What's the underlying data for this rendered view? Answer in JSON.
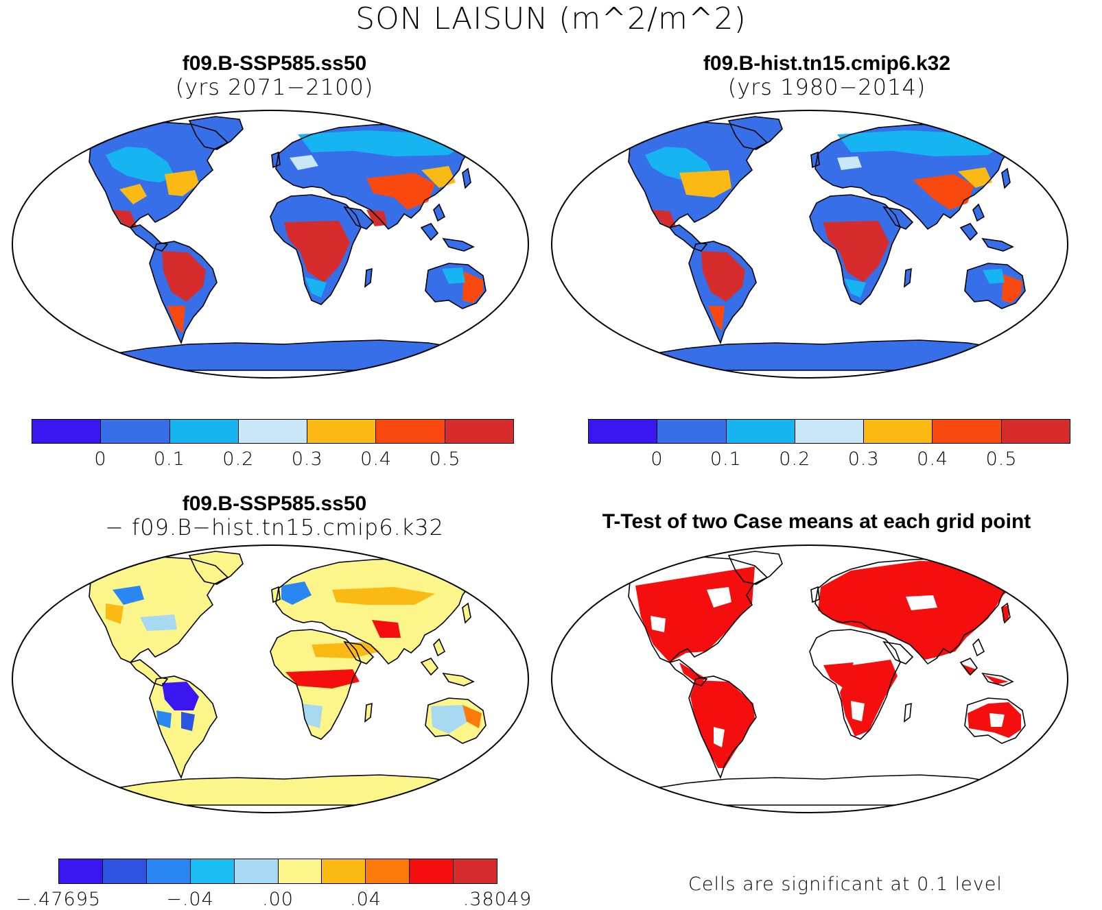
{
  "figure": {
    "title": "SON LAISUN (m^2/m^2)"
  },
  "panels": {
    "future": {
      "title_line1": "f09.B-SSP585.ss50",
      "title_line2": "(yrs 2071−2100)"
    },
    "historical": {
      "title_line1": "f09.B-hist.tn15.cmip6.k32",
      "title_line2": "(yrs 1980−2014)"
    },
    "difference": {
      "title_line1": "f09.B-SSP585.ss50",
      "title_line2": "− f09.B−hist.tn15.cmip6.k32"
    },
    "ttest": {
      "title": "T-Test of two Case means at each grid point",
      "footnote": "Cells are significant at 0.1 level"
    }
  },
  "colorbars": {
    "absolute": {
      "colors": [
        "#3a16f0",
        "#376fe8",
        "#16b4f0",
        "#c9e7f7",
        "#fbb913",
        "#f9490f",
        "#d62c2c"
      ],
      "ticks": [
        "0",
        "0.1",
        "0.2",
        "0.3",
        "0.4",
        "0.5"
      ]
    },
    "difference": {
      "colors": [
        "#3a16f0",
        "#2d54e0",
        "#2a86f2",
        "#1bbdf2",
        "#a7d9f3",
        "#fcf68a",
        "#fbb913",
        "#fb7a0a",
        "#f50e0e",
        "#d62c2c"
      ],
      "tick_labels": [
        ".47695",
        "−.04",
        ".00",
        ".04",
        ".38049"
      ],
      "first_tick_prefix": "−"
    }
  },
  "map_colors": {
    "ocean": "#ffffff",
    "coast": "#000000",
    "significant": "#f50e0e"
  }
}
